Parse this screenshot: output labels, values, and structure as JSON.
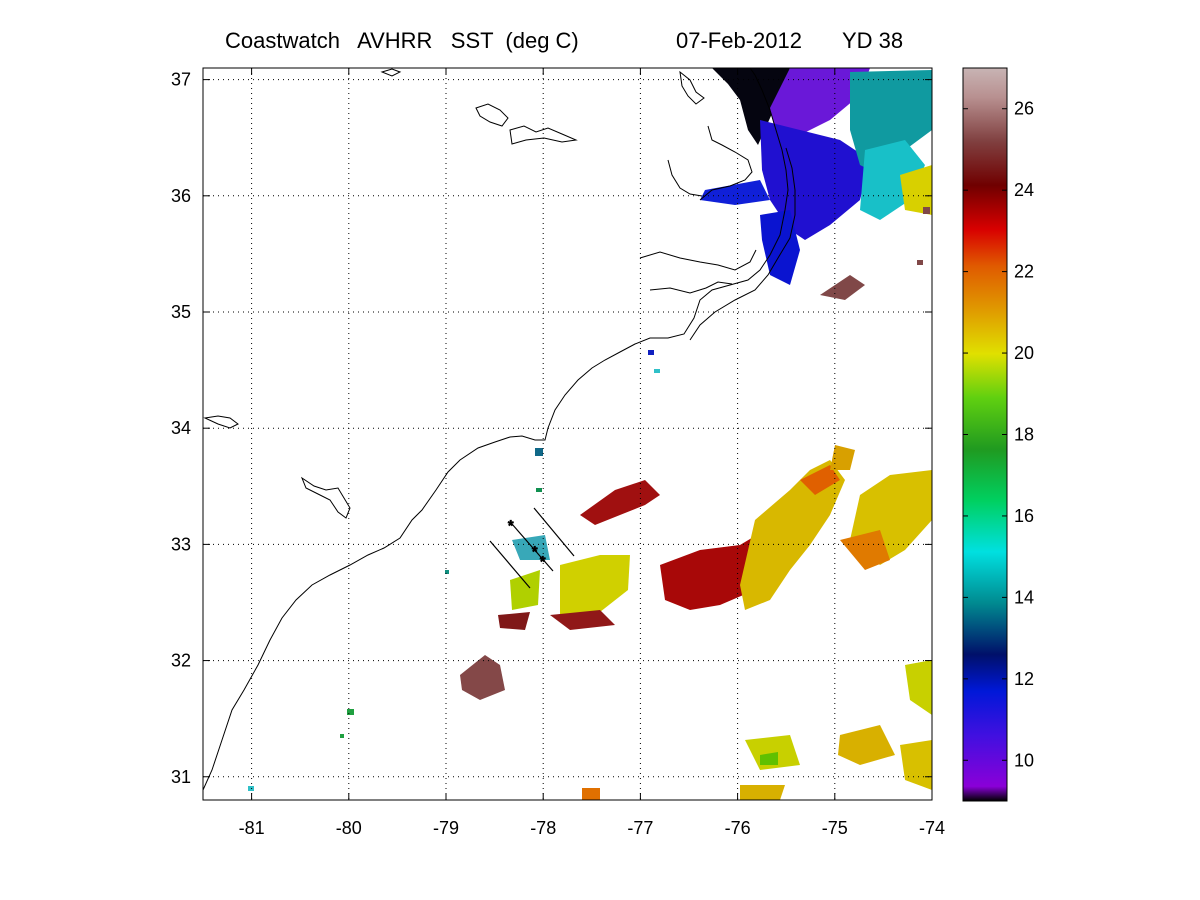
{
  "title": {
    "main": "Coastwatch   AVHRR   SST  (deg C)",
    "date": "07-Feb-2012",
    "yearday": "YD 38"
  },
  "map": {
    "lon_range": [
      -81.5,
      -74
    ],
    "lat_range": [
      30.8,
      37.1
    ],
    "lon_ticks": [
      "-81",
      "-80",
      "-79",
      "-78",
      "-77",
      "-76",
      "-75",
      "-74"
    ],
    "lat_ticks": [
      "37",
      "36",
      "35",
      "34",
      "33",
      "32",
      "31"
    ],
    "grid": "dotted"
  },
  "colorbar": {
    "range": [
      9,
      27
    ],
    "ticks": [
      "26",
      "24",
      "22",
      "20",
      "18",
      "16",
      "14",
      "12",
      "10"
    ],
    "colormap": [
      "#000000",
      "#8a00d8",
      "#0018d8",
      "#00106a",
      "#008a90",
      "#00e0e0",
      "#00d060",
      "#209a20",
      "#60d010",
      "#e0e000",
      "#e09a00",
      "#e05a00",
      "#d80000",
      "#700000",
      "#804040",
      "#b89090",
      "#c8b4b4"
    ]
  }
}
